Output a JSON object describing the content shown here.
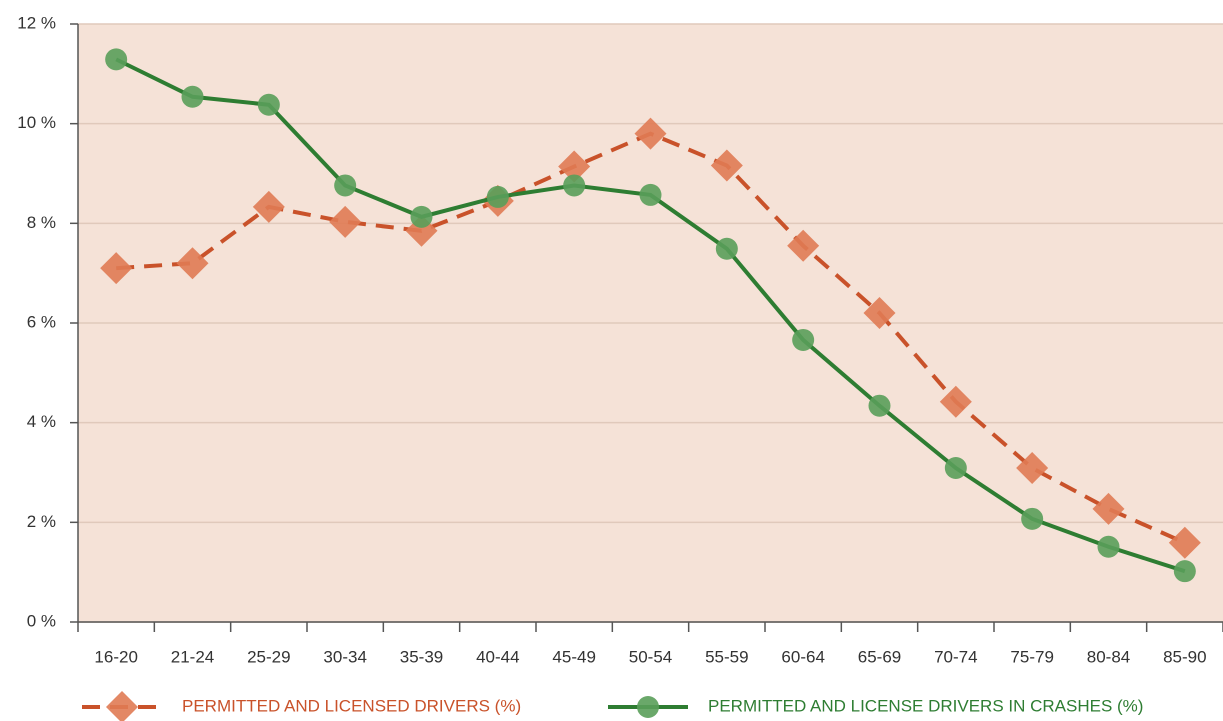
{
  "chart_data": {
    "type": "line",
    "categories": [
      "16-20",
      "21-24",
      "25-29",
      "30-34",
      "35-39",
      "40-44",
      "45-49",
      "50-54",
      "55-59",
      "60-64",
      "65-69",
      "70-74",
      "75-79",
      "80-84",
      "85-90"
    ],
    "series": [
      {
        "name": "PERMITTED AND LICENSED DRIVERS (%)",
        "color": "#c9522a",
        "marker_color": "#e07b54",
        "marker": "diamond",
        "dashed": true,
        "values": [
          7.1,
          7.2,
          8.33,
          8.03,
          7.85,
          8.45,
          9.14,
          9.8,
          9.16,
          7.55,
          6.2,
          4.42,
          3.09,
          2.27,
          1.59
        ]
      },
      {
        "name": "PERMITTED AND LICENSE DRIVERS IN CRASHES (%)",
        "color": "#2e7d32",
        "marker_color": "#5a9e5a",
        "marker": "circle",
        "dashed": false,
        "values": [
          11.29,
          10.54,
          10.38,
          8.76,
          8.13,
          8.53,
          8.76,
          8.57,
          7.49,
          5.66,
          4.34,
          3.09,
          2.07,
          1.51,
          1.02
        ]
      }
    ],
    "ylim": [
      0,
      12
    ],
    "yticks": [
      {
        "value": 0,
        "label": "0 %"
      },
      {
        "value": 2,
        "label": "2 %"
      },
      {
        "value": 4,
        "label": "4 %"
      },
      {
        "value": 6,
        "label": "6 %"
      },
      {
        "value": 8,
        "label": "8 %"
      },
      {
        "value": 10,
        "label": "10 %"
      },
      {
        "value": 12,
        "label": "12 %"
      }
    ],
    "grid": true,
    "legend": "bottom",
    "background": "#f5e2d7"
  }
}
